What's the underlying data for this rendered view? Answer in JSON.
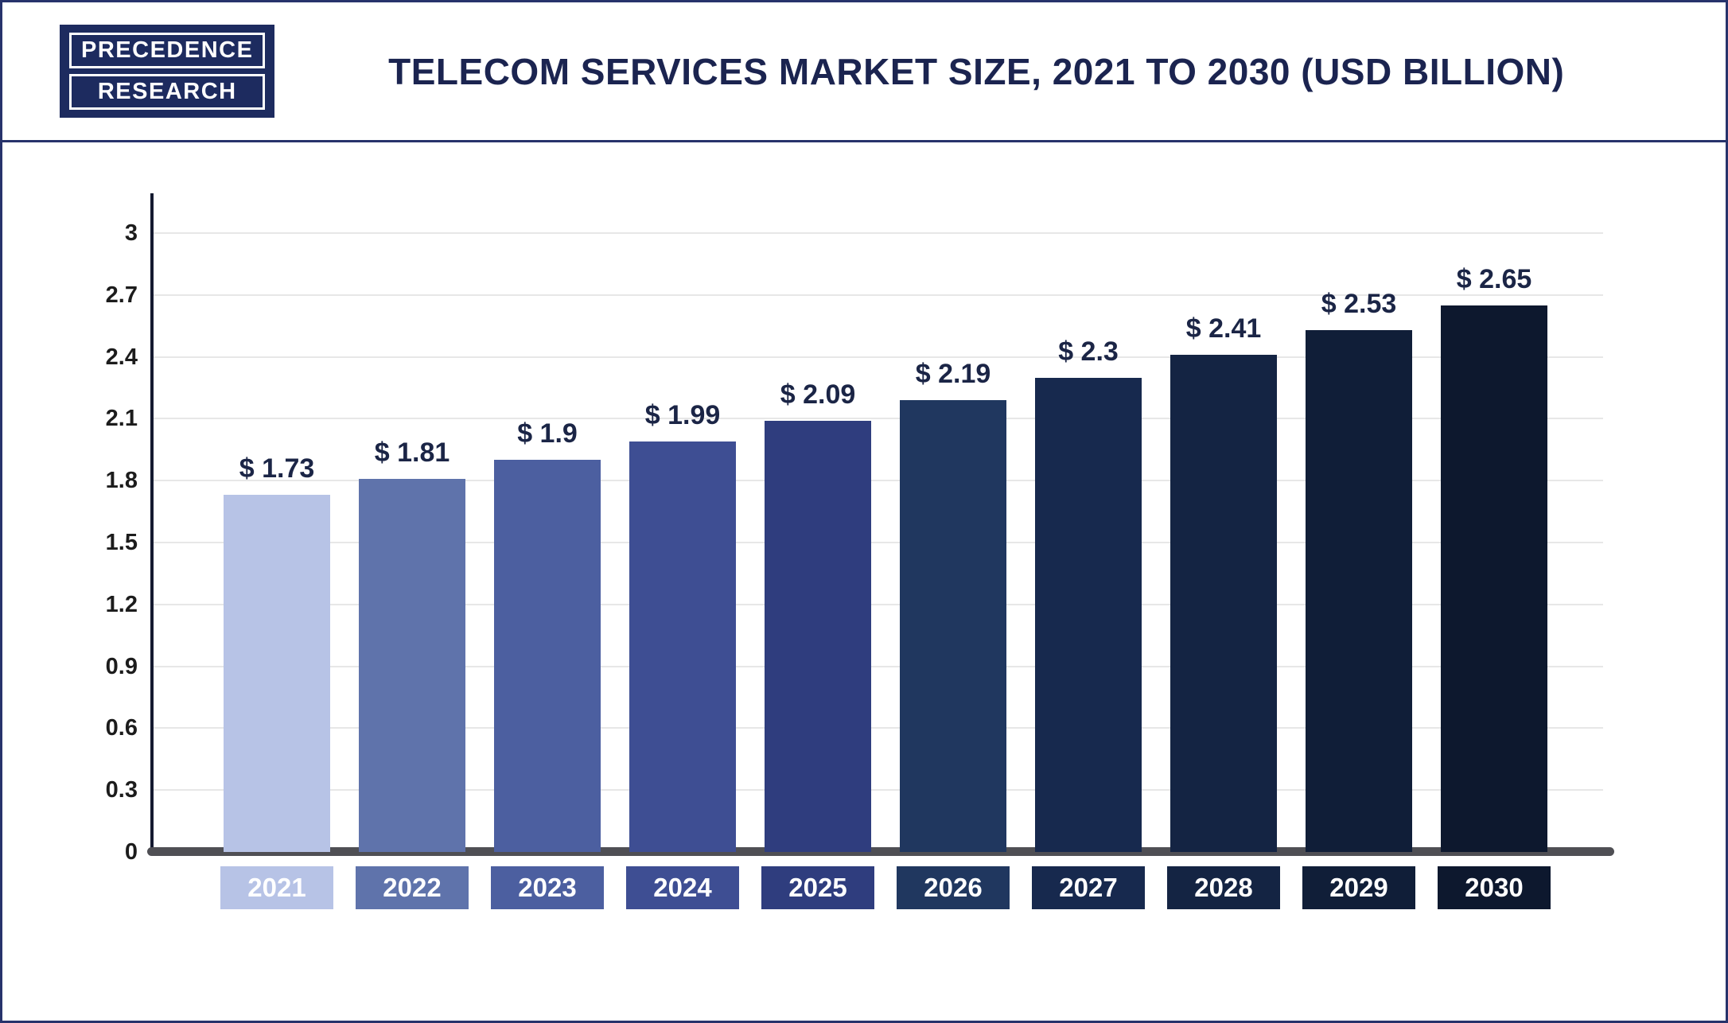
{
  "header": {
    "logo": {
      "line1": "PRECEDENCE",
      "line2": "RESEARCH"
    },
    "title": "TELECOM SERVICES MARKET SIZE, 2021 TO 2030 (USD BILLION)"
  },
  "colors": {
    "brand_navy": "#1b2450",
    "border_navy": "#27336b",
    "axis_gray": "#4f4f54",
    "gridline": "#e7e7e7"
  },
  "chart_data": {
    "type": "bar",
    "title": "TELECOM SERVICES MARKET SIZE, 2021 TO 2030 (USD BILLION)",
    "categories": [
      "2021",
      "2022",
      "2023",
      "2024",
      "2025",
      "2026",
      "2027",
      "2028",
      "2029",
      "2030"
    ],
    "values": [
      1.73,
      1.81,
      1.9,
      1.99,
      2.09,
      2.19,
      2.3,
      2.41,
      2.53,
      2.65
    ],
    "value_labels": [
      "$ 1.73",
      "$ 1.81",
      "$ 1.9",
      "$ 1.99",
      "$ 2.09",
      "$ 2.19",
      "$ 2.3",
      "$ 2.41",
      "$ 2.53",
      "$ 2.65"
    ],
    "xlabel": "",
    "ylabel": "",
    "ylim": [
      0,
      3
    ],
    "yticks": [
      "0",
      "0.3",
      "0.6",
      "0.9",
      "1.2",
      "1.5",
      "1.8",
      "2.1",
      "2.4",
      "2.7",
      "3"
    ],
    "grid": true,
    "legend": "none",
    "bar_colors": [
      "#b7c3e6",
      "#5f73ab",
      "#4c5fa0",
      "#3e4e93",
      "#2f3d7e",
      "#20375f",
      "#17294e",
      "#142443",
      "#101e38",
      "#0d182e"
    ]
  }
}
